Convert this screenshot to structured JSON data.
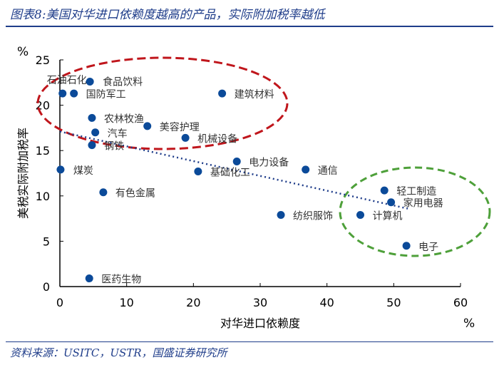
{
  "header": {
    "title": "图表8:美国对华进口依赖度越高的产品，实际附加税率越低"
  },
  "footer": {
    "source": "资料来源：USITC，USTR，国盛证券研究所"
  },
  "chart_data": {
    "type": "scatter",
    "title": "",
    "xlabel": "对华进口依赖度",
    "ylabel": "美税实际附加税率",
    "x_unit": "%",
    "y_unit": "%",
    "xlim": [
      0,
      60
    ],
    "ylim": [
      0,
      25
    ],
    "xticks": [
      0,
      10,
      20,
      30,
      40,
      50,
      60
    ],
    "yticks": [
      0,
      5,
      10,
      15,
      20,
      25
    ],
    "grid": false,
    "point_color": "#0b4a99",
    "points": [
      {
        "label": "石油石化",
        "x": 0.4,
        "y": 21.3
      },
      {
        "label": "国防军工",
        "x": 2.1,
        "y": 21.3
      },
      {
        "label": "食品饮料",
        "x": 4.5,
        "y": 22.6
      },
      {
        "label": "建筑材料",
        "x": 24.3,
        "y": 21.3
      },
      {
        "label": "农林牧渔",
        "x": 4.8,
        "y": 18.6
      },
      {
        "label": "美容护理",
        "x": 13.1,
        "y": 17.7
      },
      {
        "label": "汽车",
        "x": 5.3,
        "y": 17.0
      },
      {
        "label": "钢铁",
        "x": 4.8,
        "y": 15.6
      },
      {
        "label": "机械设备",
        "x": 18.8,
        "y": 16.4
      },
      {
        "label": "煤炭",
        "x": 0.1,
        "y": 12.9
      },
      {
        "label": "电力设备",
        "x": 26.5,
        "y": 13.8
      },
      {
        "label": "基础化工",
        "x": 20.7,
        "y": 12.7
      },
      {
        "label": "通信",
        "x": 36.8,
        "y": 12.9
      },
      {
        "label": "轻工制造",
        "x": 48.6,
        "y": 10.6
      },
      {
        "label": "家用电器",
        "x": 49.6,
        "y": 9.3
      },
      {
        "label": "纺织服饰",
        "x": 33.1,
        "y": 7.9
      },
      {
        "label": "计算机",
        "x": 45.0,
        "y": 7.9
      },
      {
        "label": "电子",
        "x": 51.9,
        "y": 4.5
      },
      {
        "label": "有色金属",
        "x": 6.5,
        "y": 10.4
      },
      {
        "label": "医药生物",
        "x": 4.4,
        "y": 0.9
      }
    ],
    "trendline": {
      "style": "dotted",
      "color": "#1f3d8a",
      "from": [
        0,
        17.1
      ],
      "to": [
        52.1,
        8.6
      ]
    },
    "annotations": [
      {
        "shape": "ellipse",
        "style": "dashed",
        "color": "#c0161c"
      },
      {
        "shape": "ellipse",
        "style": "dashed",
        "color": "#4ea03a"
      }
    ]
  }
}
